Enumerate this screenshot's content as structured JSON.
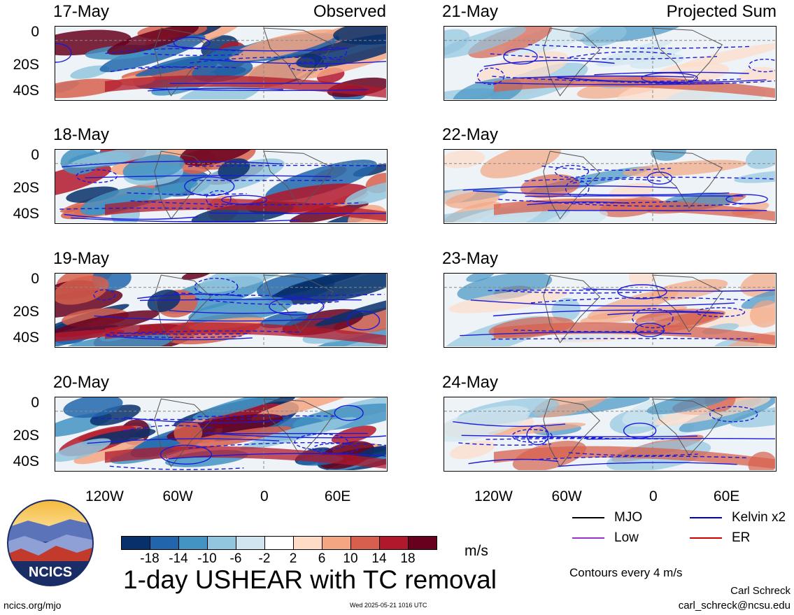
{
  "panels": {
    "left": [
      {
        "date": "17-May",
        "tag": "Observed"
      },
      {
        "date": "18-May",
        "tag": ""
      },
      {
        "date": "19-May",
        "tag": ""
      },
      {
        "date": "20-May",
        "tag": ""
      }
    ],
    "right": [
      {
        "date": "21-May",
        "tag": "Projected Sum"
      },
      {
        "date": "22-May",
        "tag": ""
      },
      {
        "date": "23-May",
        "tag": ""
      },
      {
        "date": "24-May",
        "tag": ""
      }
    ]
  },
  "y_ticks": [
    "0",
    "20S",
    "40S"
  ],
  "x_ticks": [
    "120W",
    "60W",
    "0",
    "60E"
  ],
  "colorbar": {
    "colors": [
      "#08306b",
      "#2166ac",
      "#4393c3",
      "#92c5de",
      "#d1e5f0",
      "#ffffff",
      "#fddbc7",
      "#f4a582",
      "#d6604d",
      "#b2182b",
      "#67001f"
    ],
    "labels": [
      "-18",
      "-14",
      "-10",
      "-6",
      "-2",
      "2",
      "6",
      "10",
      "14",
      "18"
    ],
    "units": "m/s"
  },
  "title": "1-day USHEAR with TC removal",
  "legend": [
    {
      "label": "MJO",
      "color": "#000000"
    },
    {
      "label": "Kelvin x2",
      "color": "#0000cc"
    },
    {
      "label": "Low",
      "color": "#9933cc"
    },
    {
      "label": "ER",
      "color": "#cc0000"
    }
  ],
  "contour_note": "Contours every 4 m/s",
  "author": "Carl Schreck",
  "email": "carl_schreck@ncsu.edu",
  "website": "ncics.org/mjo",
  "timestamp": "Wed 2025-05-21 1016 UTC",
  "logo_text": "NCICS",
  "chart_data": {
    "type": "heatmap",
    "title": "1-day USHEAR with TC removal",
    "variable": "zonal wind shear anomaly",
    "units": "m/s",
    "left_column": "Observed",
    "right_column": "Projected Sum",
    "dates_observed": [
      "17-May",
      "18-May",
      "19-May",
      "20-May"
    ],
    "dates_projected": [
      "21-May",
      "22-May",
      "23-May",
      "24-May"
    ],
    "x_tick_labels": [
      "120W",
      "60W",
      "0",
      "60E"
    ],
    "y_tick_labels": [
      "0",
      "20S",
      "40S"
    ],
    "lat_range": [
      "40S",
      "10N"
    ],
    "color_levels": [
      -18,
      -14,
      -10,
      -6,
      -2,
      2,
      6,
      10,
      14,
      18
    ],
    "contour_interval_ms": 4,
    "legend": [
      "MJO",
      "Kelvin x2",
      "Low",
      "ER"
    ]
  }
}
